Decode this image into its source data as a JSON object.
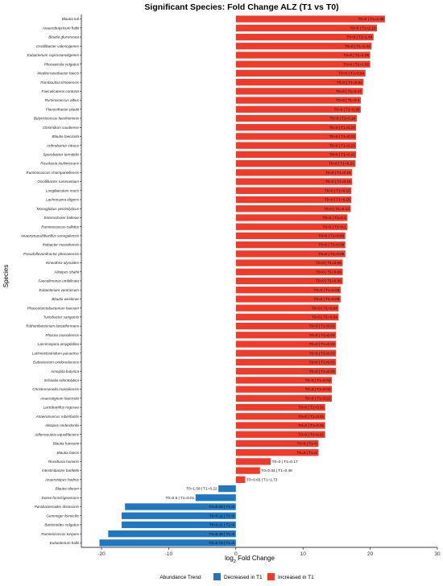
{
  "chart_data": {
    "type": "bar",
    "orientation": "horizontal",
    "title": "Significant Species: Fold Change ALZ (T1 vs T0)",
    "xlabel_main": "log",
    "xlabel_sub": "2",
    "xlabel_rest": " Fold Change",
    "ylabel": "Species",
    "xlim": [
      -23,
      30
    ],
    "xticks": [
      -20,
      -10,
      0,
      10,
      20,
      30
    ],
    "grid": false,
    "legend_position": "bottom",
    "legend_title": "Abundance Trend",
    "legend": [
      {
        "label": "Decreased in T1",
        "color": "#2176c0"
      },
      {
        "label": "Increased in T1",
        "color": "#ef3b2c"
      }
    ],
    "bars": [
      {
        "species": "Blautia luti",
        "value": 22.2,
        "label": "T0=0 | T1=4.48",
        "trend": "up"
      },
      {
        "species": "Anaerobutyricum hallii",
        "value": 21.0,
        "label": "T0=0 | T1=2.16",
        "trend": "up"
      },
      {
        "species": "Blautia glucerasea",
        "value": 20.5,
        "label": "T0=0 | T1=1.48",
        "trend": "up"
      },
      {
        "species": "Oscillibacter valericigenes",
        "value": 20.2,
        "label": "T0=0 | T1=1.24",
        "trend": "up"
      },
      {
        "species": "Eubacterium coprostanoligenes",
        "value": 20.0,
        "label": "T0=0 | T1=1.08",
        "trend": "up"
      },
      {
        "species": "Phocaeicola vulgatus",
        "value": 20.0,
        "label": "T0=0 | T1=1.02",
        "trend": "up"
      },
      {
        "species": "Mediterraneibacter faecis",
        "value": 19.3,
        "label": "T0=0 | T1=0.64",
        "trend": "up"
      },
      {
        "species": "Romboutsia timonensis",
        "value": 19.0,
        "label": "T0=0 | T1=0.52",
        "trend": "up"
      },
      {
        "species": "Faecalicatena contorta",
        "value": 18.9,
        "label": "T0=0 | T1=0.47",
        "trend": "up"
      },
      {
        "species": "Ruminococcus albus",
        "value": 18.6,
        "label": "T0=0 | T1=0.4",
        "trend": "up"
      },
      {
        "species": "Flavonifractor plautii",
        "value": 18.6,
        "label": "T0=0 | T1=0.39",
        "trend": "up"
      },
      {
        "species": "Butyricicoccus faecihominis",
        "value": 18.0,
        "label": "T0=0 | T1=0.24",
        "trend": "up"
      },
      {
        "species": "Clostridium saudiense",
        "value": 17.9,
        "label": "T0=0 | T1=0.23",
        "trend": "up"
      },
      {
        "species": "Blautia faecicola",
        "value": 17.9,
        "label": "T0=0 | T1=0.23",
        "trend": "up"
      },
      {
        "species": "Arthrobacter citreus",
        "value": 17.9,
        "label": "T0=0 | T1=0.23",
        "trend": "up"
      },
      {
        "species": "Sporobacter termitidis",
        "value": 17.9,
        "label": "T0=0 | T1=0.22",
        "trend": "up"
      },
      {
        "species": "Roseburia inulinivorans",
        "value": 17.8,
        "label": "T0=0 | T1=0.21",
        "trend": "up"
      },
      {
        "species": "Ruminococcus champanellensis",
        "value": 17.3,
        "label": "T0=0 | T1=0.16",
        "trend": "up"
      },
      {
        "species": "Oscillibacter ruminantium",
        "value": 17.3,
        "label": "T0=0 | T1=0.16",
        "trend": "up"
      },
      {
        "species": "Longibaculum muris",
        "value": 17.2,
        "label": "T0=0 | T1=0.15",
        "trend": "up"
      },
      {
        "species": "Lachnospira eligens",
        "value": 17.2,
        "label": "T0=0 | T1=0.15",
        "trend": "up"
      },
      {
        "species": "Monoglobus pectinilyticus",
        "value": 17.1,
        "label": "T0=0 | T1=0.14",
        "trend": "up"
      },
      {
        "species": "Enterocloster bolteae",
        "value": 16.6,
        "label": "T0=0 | T1=0.1",
        "trend": "up"
      },
      {
        "species": "Ruminococcus callidus",
        "value": 16.6,
        "label": "T0=0 | T1=0.1",
        "trend": "up"
      },
      {
        "species": "Anaeromassilibacillus senegalensis",
        "value": 16.3,
        "label": "T0=0 | T1=0.08",
        "trend": "up"
      },
      {
        "species": "Ihubacter massiliensis",
        "value": 16.3,
        "label": "T0=0 | T1=0.08",
        "trend": "up"
      },
      {
        "species": "Pseudoflavonifractor phocaeensis",
        "value": 16.3,
        "label": "T0=0 | T1=0.08",
        "trend": "up"
      },
      {
        "species": "Kineothrix alysoides",
        "value": 15.9,
        "label": "T0=0 | T1=0.06",
        "trend": "up"
      },
      {
        "species": "Alistipes shahii",
        "value": 15.9,
        "label": "T0=0 | T1=0.06",
        "trend": "up"
      },
      {
        "species": "Faecalimonas umbilicata",
        "value": 15.9,
        "label": "T0=0 | T1=0.06",
        "trend": "up"
      },
      {
        "species": "Eubacterium ventriosum",
        "value": 15.6,
        "label": "T0=0 | T1=0.05",
        "trend": "up"
      },
      {
        "species": "Blautia wexlerae",
        "value": 15.6,
        "label": "T0=0 | T1=0.05",
        "trend": "up"
      },
      {
        "species": "Phascolarctobacterium faecium",
        "value": 15.3,
        "label": "T0=0 | T1=0.04",
        "trend": "up"
      },
      {
        "species": "Turicibacter sanguinis",
        "value": 15.3,
        "label": "T0=0 | T1=0.04",
        "trend": "up"
      },
      {
        "species": "Ruthenibacterium lactatiformans",
        "value": 14.9,
        "label": "T0=0 | T1=0.03",
        "trend": "up"
      },
      {
        "species": "Phocea massiliensis",
        "value": 14.9,
        "label": "T0=0 | T1=0.03",
        "trend": "up"
      },
      {
        "species": "Lacrimispora amygdalina",
        "value": 14.9,
        "label": "T0=0 | T1=0.03",
        "trend": "up"
      },
      {
        "species": "Lachnoclostridium pacaense",
        "value": 14.9,
        "label": "T0=0 | T1=0.03",
        "trend": "up"
      },
      {
        "species": "Eubacterium oxidoreducens",
        "value": 14.9,
        "label": "T0=0 | T1=0.03",
        "trend": "up"
      },
      {
        "species": "Amnipila butyrica",
        "value": 14.9,
        "label": "T0=0 | T1=0.03",
        "trend": "up"
      },
      {
        "species": "Schaalia odontolytica",
        "value": 14.3,
        "label": "T0=0 | T1=0.02",
        "trend": "up"
      },
      {
        "species": "Christensenella massiliensis",
        "value": 14.3,
        "label": "T0=0 | T1=0.02",
        "trend": "up"
      },
      {
        "species": "Anaerotignum faecicola",
        "value": 14.3,
        "label": "T0=0 | T1=0.02",
        "trend": "up"
      },
      {
        "species": "Lactobacillus rogosae",
        "value": 13.3,
        "label": "T0=0 | T1=0.01",
        "trend": "up"
      },
      {
        "species": "Anaerotruncus rubiinfantis",
        "value": 13.3,
        "label": "T0=0 | T1=0.01",
        "trend": "up"
      },
      {
        "species": "Alistipes onderdonkii",
        "value": 13.3,
        "label": "T0=0 | T1=0.01",
        "trend": "up"
      },
      {
        "species": "Adlercreutzia equolifaciens",
        "value": 13.3,
        "label": "T0=0 | T1=0.01",
        "trend": "up"
      },
      {
        "species": "Blautia hansenii",
        "value": 12.3,
        "label": "T0=0 | T1=0",
        "trend": "up"
      },
      {
        "species": "Blautia faecis",
        "value": 12.3,
        "label": "T0=0 | T1=0",
        "trend": "up"
      },
      {
        "species": "Roseburia hominis",
        "value": 5.2,
        "label": "T0=0 | T1=0.17",
        "trend": "up"
      },
      {
        "species": "Intestinibacter bartlettii",
        "value": 3.6,
        "label": "T0=0.04 | T1=0.48",
        "trend": "up"
      },
      {
        "species": "Anaerostipes hadrus",
        "value": 1.4,
        "label": "T0=0.65 | T1=1.73",
        "trend": "up"
      },
      {
        "species": "Blautia obeum",
        "value": -2.6,
        "label": "T0=1.58 | T1=0.22",
        "trend": "down"
      },
      {
        "species": "Dorea formicigenerans",
        "value": -6.0,
        "label": "T0=0.6 | T1=0.01",
        "trend": "down"
      },
      {
        "species": "Parabacteroides distasonis",
        "value": -16.5,
        "label": "T0=0.09 | T1=0",
        "trend": "down"
      },
      {
        "species": "Gemmiger formicilis",
        "value": -17.0,
        "label": "T0=0.11 | T1=0",
        "trend": "down"
      },
      {
        "species": "Bacteroides vulgatus",
        "value": -17.0,
        "label": "T0=0.11 | T1=0",
        "trend": "down"
      },
      {
        "species": "Ruminococcus torques",
        "value": -19.0,
        "label": "T0=0.48 | T1=0",
        "trend": "down"
      },
      {
        "species": "Eubacterium hallii",
        "value": -20.3,
        "label": "T0=0.74 | T1=0",
        "trend": "down"
      }
    ]
  }
}
